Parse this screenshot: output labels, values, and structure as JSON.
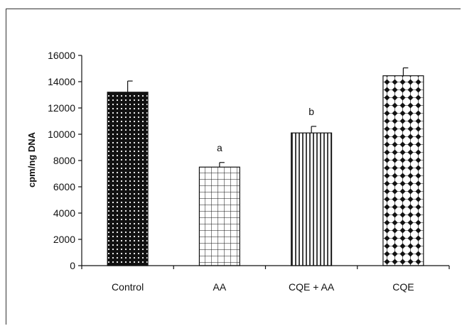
{
  "chart_data": {
    "type": "bar",
    "categories": [
      "Control",
      "AA",
      "CQE + AA",
      "CQE"
    ],
    "values": [
      13200,
      7500,
      10100,
      14450
    ],
    "errors": [
      850,
      350,
      500,
      600
    ],
    "annotations": [
      "",
      "a",
      "b",
      ""
    ],
    "ylabel": "cpm/ng DNA",
    "xlabel": "",
    "ylim": [
      0,
      16000
    ],
    "yticks": [
      0,
      2000,
      4000,
      6000,
      8000,
      10000,
      12000,
      14000,
      16000
    ],
    "grid": false,
    "legend": "none",
    "patterns": [
      "dark-dotted",
      "grid",
      "vertical-lines",
      "diamond-lattice"
    ]
  }
}
